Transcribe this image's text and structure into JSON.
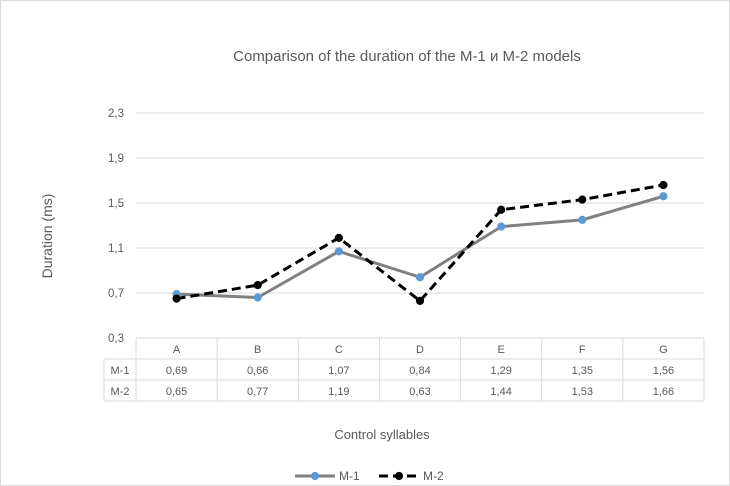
{
  "chart_data": {
    "type": "line",
    "title": "Comparison of the duration of the M-1 и M-2 models",
    "xlabel": "Control syllables",
    "ylabel": "Duration (ms)",
    "ylim": [
      0.3,
      2.3
    ],
    "yticks": [
      "0,3",
      "0,7",
      "1,1",
      "1,5",
      "1,9",
      "2,3"
    ],
    "ytick_values": [
      0.3,
      0.7,
      1.1,
      1.5,
      1.9,
      2.3
    ],
    "categories": [
      "A",
      "B",
      "C",
      "D",
      "E",
      "F",
      "G"
    ],
    "grid": true,
    "legend_position": "bottom",
    "series": [
      {
        "name": "M-1",
        "values": [
          0.69,
          0.66,
          1.07,
          0.84,
          1.29,
          1.35,
          1.56
        ],
        "labels": [
          "0,69",
          "0,66",
          "1,07",
          "0,84",
          "1,29",
          "1,35",
          "1,56"
        ],
        "line_color": "#808080",
        "marker_color": "#5b9bd5",
        "dashed": false
      },
      {
        "name": "M-2",
        "values": [
          0.65,
          0.77,
          1.19,
          0.63,
          1.44,
          1.53,
          1.66
        ],
        "labels": [
          "0,65",
          "0,77",
          "1,19",
          "0,63",
          "1,44",
          "1,53",
          "1,66"
        ],
        "line_color": "#000000",
        "marker_color": "#000000",
        "dashed": true
      }
    ]
  }
}
